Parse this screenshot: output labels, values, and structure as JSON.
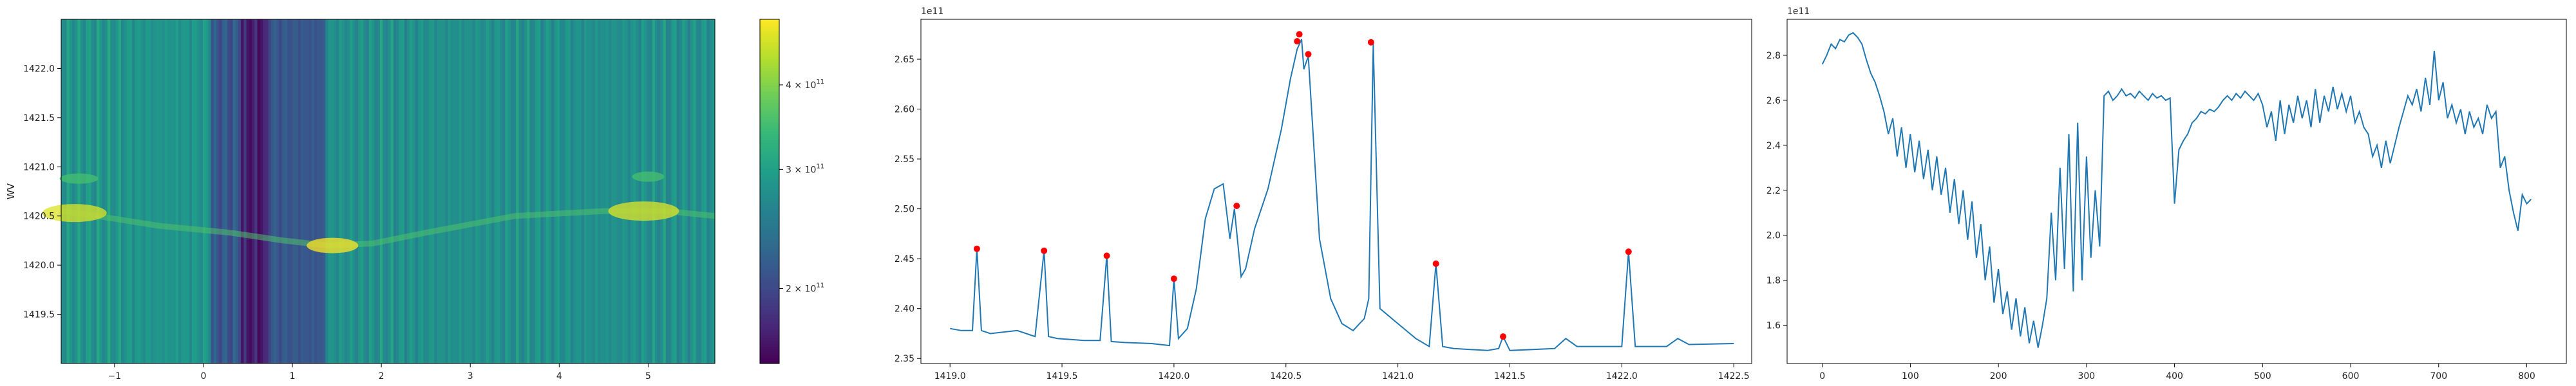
{
  "colors": {
    "line": "#1f77b4",
    "peak_marker": "#ff0000",
    "axes": "#000000"
  },
  "chart_data": [
    {
      "type": "heatmap",
      "colormap": "viridis",
      "ylabel": "WV",
      "xlim": [
        -1.6,
        5.75
      ],
      "ylim": [
        1419.0,
        1422.5
      ],
      "xticks": [
        -1,
        0,
        1,
        2,
        3,
        4,
        5
      ],
      "xtick_labels": [
        "−1",
        "0",
        "1",
        "2",
        "3",
        "4",
        "5"
      ],
      "yticks": [
        1419.5,
        1420.0,
        1420.5,
        1421.0,
        1421.5,
        1422.0
      ],
      "ytick_labels": [
        "1419.5",
        "1420.0",
        "1420.5",
        "1421.0",
        "1421.5",
        "1422.0"
      ],
      "colorbar": {
        "scale": "log",
        "range": [
          155000000000.0,
          500000000000.0
        ],
        "ticks": [
          200000000000.0,
          300000000000.0,
          400000000000.0
        ],
        "tick_bases": [
          "2 × 10",
          "3 × 10",
          "4 × 10"
        ],
        "tick_exponent": "11"
      }
    },
    {
      "type": "line",
      "series": [
        {
          "x": [
            1419.0,
            1419.05,
            1419.1,
            1419.12,
            1419.14,
            1419.18,
            1419.3,
            1419.38,
            1419.42,
            1419.44,
            1419.48,
            1419.6,
            1419.67,
            1419.7,
            1419.72,
            1419.78,
            1419.9,
            1419.98,
            1420.0,
            1420.02,
            1420.06,
            1420.1,
            1420.14,
            1420.18,
            1420.22,
            1420.25,
            1420.27,
            1420.3,
            1420.32,
            1420.36,
            1420.42,
            1420.48,
            1420.52,
            1420.55,
            1420.57,
            1420.58,
            1420.6,
            1420.62,
            1420.65,
            1420.7,
            1420.75,
            1420.8,
            1420.85,
            1420.87,
            1420.89,
            1420.92,
            1421.0,
            1421.08,
            1421.14,
            1421.17,
            1421.2,
            1421.25,
            1421.4,
            1421.45,
            1421.47,
            1421.5,
            1421.7,
            1421.75,
            1421.8,
            1422.0,
            1422.03,
            1422.06,
            1422.2,
            1422.25,
            1422.3,
            1422.5
          ],
          "y": [
            238000000000.0,
            237800000000.0,
            237800000000.0,
            246000000000.0,
            237800000000.0,
            237500000000.0,
            237800000000.0,
            237200000000.0,
            245800000000.0,
            237200000000.0,
            237000000000.0,
            236800000000.0,
            236800000000.0,
            245300000000.0,
            236700000000.0,
            236600000000.0,
            236500000000.0,
            236300000000.0,
            243000000000.0,
            237000000000.0,
            238000000000.0,
            242000000000.0,
            249000000000.0,
            252000000000.0,
            252500000000.0,
            247000000000.0,
            250000000000.0,
            243200000000.0,
            244000000000.0,
            248000000000.0,
            252000000000.0,
            258000000000.0,
            263000000000.0,
            266000000000.0,
            267000000000.0,
            264000000000.0,
            265300000000.0,
            258000000000.0,
            247000000000.0,
            241000000000.0,
            238500000000.0,
            237800000000.0,
            239000000000.0,
            241000000000.0,
            266500000000.0,
            240000000000.0,
            238500000000.0,
            237000000000.0,
            236200000000.0,
            244500000000.0,
            236200000000.0,
            236000000000.0,
            235800000000.0,
            236000000000.0,
            237200000000.0,
            235800000000.0,
            236000000000.0,
            237000000000.0,
            236200000000.0,
            236200000000.0,
            245700000000.0,
            236200000000.0,
            236200000000.0,
            237000000000.0,
            236400000000.0,
            236500000000.0
          ]
        }
      ],
      "peaks": {
        "x": [
          1419.12,
          1419.42,
          1419.7,
          1420.0,
          1420.28,
          1420.55,
          1420.56,
          1420.6,
          1420.88,
          1421.17,
          1421.47,
          1422.03
        ],
        "y": [
          246000000000.0,
          245800000000.0,
          245300000000.0,
          243000000000.0,
          250300000000.0,
          266800000000.0,
          267500000000.0,
          265500000000.0,
          266700000000.0,
          244500000000.0,
          237200000000.0,
          245700000000.0
        ]
      },
      "xlim": [
        1418.87,
        1422.58
      ],
      "ylim": [
        234500000000.0,
        269000000000.0
      ],
      "xticks": [
        1419.0,
        1419.5,
        1420.0,
        1420.5,
        1421.0,
        1421.5,
        1422.0,
        1422.5
      ],
      "xtick_labels": [
        "1419.0",
        "1419.5",
        "1420.0",
        "1420.5",
        "1421.0",
        "1421.5",
        "1422.0",
        "1422.5"
      ],
      "yticks": [
        235000000000.0,
        240000000000.0,
        245000000000.0,
        250000000000.0,
        255000000000.0,
        260000000000.0,
        265000000000.0
      ],
      "ytick_labels": [
        "2.35",
        "2.40",
        "2.45",
        "2.50",
        "2.55",
        "2.60",
        "2.65"
      ],
      "offset_text": "1e11"
    },
    {
      "type": "line",
      "series": [
        {
          "x": [
            0,
            5,
            10,
            15,
            20,
            25,
            30,
            35,
            40,
            45,
            50,
            55,
            60,
            65,
            70,
            75,
            80,
            85,
            90,
            95,
            100,
            105,
            110,
            115,
            120,
            125,
            130,
            135,
            140,
            145,
            150,
            155,
            160,
            165,
            170,
            175,
            180,
            185,
            190,
            195,
            200,
            205,
            210,
            215,
            220,
            225,
            230,
            235,
            240,
            245,
            250,
            255,
            260,
            265,
            270,
            275,
            280,
            285,
            290,
            295,
            300,
            305,
            310,
            315,
            320,
            325,
            330,
            335,
            340,
            345,
            350,
            355,
            360,
            365,
            370,
            375,
            380,
            385,
            390,
            395,
            400,
            405,
            410,
            415,
            420,
            425,
            430,
            435,
            440,
            445,
            450,
            455,
            460,
            465,
            470,
            475,
            480,
            485,
            490,
            495,
            500,
            505,
            510,
            515,
            520,
            525,
            530,
            535,
            540,
            545,
            550,
            555,
            560,
            565,
            570,
            575,
            580,
            585,
            590,
            595,
            600,
            605,
            610,
            615,
            620,
            625,
            630,
            635,
            640,
            645,
            650,
            655,
            660,
            665,
            670,
            675,
            680,
            685,
            690,
            695,
            700,
            705,
            710,
            715,
            720,
            725,
            730,
            735,
            740,
            745,
            750,
            755,
            760,
            765,
            770,
            775,
            780,
            785,
            790,
            795,
            800,
            805
          ],
          "y": [
            276000000000.0,
            280000000000.0,
            285000000000.0,
            283000000000.0,
            287000000000.0,
            286000000000.0,
            289000000000.0,
            290000000000.0,
            288000000000.0,
            285000000000.0,
            278000000000.0,
            272000000000.0,
            268000000000.0,
            262000000000.0,
            255000000000.0,
            245000000000.0,
            252000000000.0,
            235000000000.0,
            248000000000.0,
            230000000000.0,
            245000000000.0,
            228000000000.0,
            242000000000.0,
            225000000000.0,
            238000000000.0,
            220000000000.0,
            235000000000.0,
            218000000000.0,
            230000000000.0,
            210000000000.0,
            225000000000.0,
            205000000000.0,
            220000000000.0,
            198000000000.0,
            215000000000.0,
            190000000000.0,
            205000000000.0,
            180000000000.0,
            195000000000.0,
            170000000000.0,
            185000000000.0,
            165000000000.0,
            175000000000.0,
            158000000000.0,
            172000000000.0,
            155000000000.0,
            168000000000.0,
            152000000000.0,
            162000000000.0,
            150000000000.0,
            160000000000.0,
            172000000000.0,
            210000000000.0,
            180000000000.0,
            230000000000.0,
            185000000000.0,
            245000000000.0,
            175000000000.0,
            250000000000.0,
            180000000000.0,
            235000000000.0,
            190000000000.0,
            220000000000.0,
            195000000000.0,
            262000000000.0,
            264000000000.0,
            260000000000.0,
            262000000000.0,
            265000000000.0,
            262000000000.0,
            263000000000.0,
            261000000000.0,
            264000000000.0,
            262000000000.0,
            260000000000.0,
            263000000000.0,
            261000000000.0,
            262000000000.0,
            260000000000.0,
            261000000000.0,
            214000000000.0,
            238000000000.0,
            242000000000.0,
            245000000000.0,
            250000000000.0,
            252000000000.0,
            255000000000.0,
            254000000000.0,
            256000000000.0,
            255000000000.0,
            257000000000.0,
            260000000000.0,
            262000000000.0,
            260000000000.0,
            263000000000.0,
            261000000000.0,
            264000000000.0,
            262000000000.0,
            260000000000.0,
            263000000000.0,
            258000000000.0,
            248000000000.0,
            255000000000.0,
            242000000000.0,
            260000000000.0,
            245000000000.0,
            258000000000.0,
            250000000000.0,
            262000000000.0,
            252000000000.0,
            260000000000.0,
            248000000000.0,
            265000000000.0,
            250000000000.0,
            262000000000.0,
            255000000000.0,
            266000000000.0,
            256000000000.0,
            263000000000.0,
            255000000000.0,
            262000000000.0,
            250000000000.0,
            255000000000.0,
            248000000000.0,
            245000000000.0,
            235000000000.0,
            240000000000.0,
            230000000000.0,
            242000000000.0,
            232000000000.0,
            240000000000.0,
            248000000000.0,
            255000000000.0,
            262000000000.0,
            258000000000.0,
            265000000000.0,
            255000000000.0,
            270000000000.0,
            258000000000.0,
            282000000000.0,
            260000000000.0,
            268000000000.0,
            252000000000.0,
            258000000000.0,
            250000000000.0,
            256000000000.0,
            245000000000.0,
            255000000000.0,
            248000000000.0,
            252000000000.0,
            245000000000.0,
            258000000000.0,
            252000000000.0,
            255000000000.0,
            230000000000.0,
            235000000000.0,
            220000000000.0,
            210000000000.0,
            202000000000.0,
            218000000000.0,
            214000000000.0,
            216000000000.0
          ]
        }
      ],
      "xlim": [
        -40,
        845
      ],
      "ylim": [
        143000000000.0,
        296000000000.0
      ],
      "xticks": [
        0,
        100,
        200,
        300,
        400,
        500,
        600,
        700,
        800
      ],
      "xtick_labels": [
        "0",
        "100",
        "200",
        "300",
        "400",
        "500",
        "600",
        "700",
        "800"
      ],
      "yticks": [
        160000000000.0,
        180000000000.0,
        200000000000.0,
        220000000000.0,
        240000000000.0,
        260000000000.0,
        280000000000.0
      ],
      "ytick_labels": [
        "1.6",
        "1.8",
        "2.0",
        "2.2",
        "2.4",
        "2.6",
        "2.8"
      ],
      "offset_text": "1e11"
    }
  ]
}
